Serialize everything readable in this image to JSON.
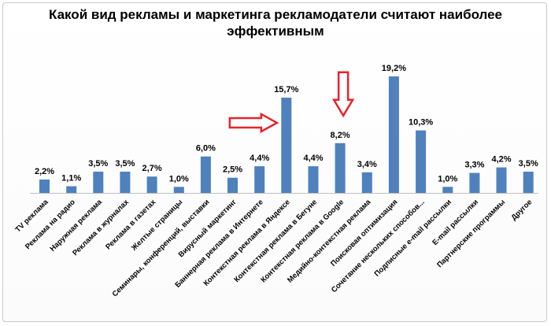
{
  "chart_data": {
    "type": "bar",
    "title_lines": [
      "Какой вид рекламы и маркетинга рекламодатели считают наиболее",
      "эффективным"
    ],
    "categories": [
      "TV реклама",
      "Реклама на радио",
      "Наружная реклама",
      "Реклама в журналах",
      "Реклама в газетах",
      "Желтые страницы",
      "Семинары, конференций, выставки",
      "Вирусный маркетинг",
      "Баннерная реклама в Интернете",
      "Контекстная реклама в Яндексе",
      "Контекстная реклама в Бегуне",
      "Контекстная реклама в Google",
      "Медийно-контекстная реклама",
      "Поисковая оптимизация",
      "Сочетание нескольких способов...",
      "Подписные e-mail рассылки",
      "E-mail рассылки",
      "Партнерские программы",
      "Другое"
    ],
    "values": [
      2.2,
      1.1,
      3.5,
      3.5,
      2.7,
      1.0,
      6.0,
      2.5,
      4.4,
      15.7,
      4.4,
      8.2,
      3.4,
      19.2,
      10.3,
      1.0,
      3.3,
      4.2,
      3.5
    ],
    "value_labels": [
      "2,2%",
      "1,1%",
      "3,5%",
      "3,5%",
      "2,7%",
      "1,0%",
      "6,0%",
      "2,5%",
      "4,4%",
      "15,7%",
      "4,4%",
      "8,2%",
      "3,4%",
      "19,2%",
      "10,3%",
      "1,0%",
      "3,3%",
      "4,2%",
      "3,5%"
    ],
    "ylim": [
      0,
      20
    ],
    "grid": false,
    "legend": "none",
    "bar_color": "#4f81bd",
    "arrow_color": "#e8232b",
    "arrows": [
      {
        "points_to": "Контекстная реклама в Яндексе",
        "direction": "right"
      },
      {
        "points_to": "Контекстная реклама в Google",
        "direction": "down"
      }
    ]
  }
}
